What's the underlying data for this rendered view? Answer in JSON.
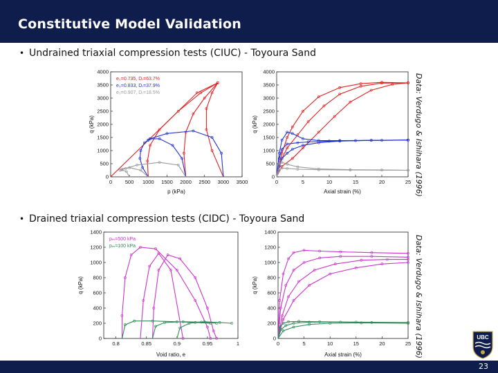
{
  "slide": {
    "title": "Constitutive Model Validation",
    "bullet1": "Undrained triaxial compression tests (CIUC) - Toyoura Sand",
    "bullet2": "Drained triaxial compression tests (CIDC) - Toyoura Sand",
    "credit1": "Data: Verdugo & Ishihara (1996)",
    "credit2": "Data: Verdugo & Ishihara (1996)",
    "page_number": "23",
    "logo_text": "UBC"
  },
  "chart_data": [
    {
      "id": "ciuc-stress-path",
      "type": "line",
      "xlabel": "p (kPa)",
      "ylabel": "q (kPa)",
      "xlim": [
        0,
        3500
      ],
      "ylim": [
        0,
        4000
      ],
      "xticks": [
        "0",
        "500",
        "1000",
        "1500",
        "2000",
        "2500",
        "3000",
        "3500"
      ],
      "yticks": [
        "0",
        "500",
        "1000",
        "1500",
        "2000",
        "2500",
        "3000",
        "3500",
        "4000"
      ],
      "legend": [
        "e₀=0.735, Dᵣ=63.7%",
        "e₀=0.833, Dᵣ=37.9%",
        "e₀=0.907, Dᵣ=18.5%"
      ],
      "legend_colors": [
        "#e02020",
        "#2030d0",
        "#999999"
      ],
      "series": [
        {
          "name": "e0=0.735 model",
          "color": "#e02020",
          "x": [
            0,
            2300,
            2850
          ],
          "y": [
            0,
            3200,
            3580
          ]
        },
        {
          "name": "e0=0.735 p0=1000",
          "color": "#e02020",
          "x": [
            1000,
            980,
            1050,
            1300,
            1800,
            2400,
            2850
          ],
          "y": [
            0,
            600,
            1200,
            1800,
            2500,
            3200,
            3580
          ]
        },
        {
          "name": "e0=0.735 p0=2000",
          "color": "#e02020",
          "x": [
            2000,
            1950,
            2000,
            2200,
            2500,
            2850
          ],
          "y": [
            0,
            900,
            1700,
            2400,
            3000,
            3580
          ]
        },
        {
          "name": "e0=0.735 p0=3000",
          "color": "#e02020",
          "x": [
            3000,
            2700,
            2550,
            2550,
            2700,
            2850
          ],
          "y": [
            0,
            1000,
            1800,
            2600,
            3200,
            3580
          ]
        },
        {
          "name": "e0=0.833 p0=1000",
          "color": "#2030d0",
          "x": [
            1000,
            850,
            780,
            800,
            900,
            1000
          ],
          "y": [
            0,
            350,
            700,
            1000,
            1300,
            1400
          ]
        },
        {
          "name": "e0=0.833 p0=2000",
          "color": "#2030d0",
          "x": [
            2000,
            1900,
            1650,
            1300,
            1050,
            1000
          ],
          "y": [
            0,
            700,
            1200,
            1450,
            1450,
            1400
          ]
        },
        {
          "name": "e0=0.833 p0=3000",
          "color": "#2030d0",
          "x": [
            3000,
            2950,
            2700,
            2200,
            1500,
            1050,
            1000
          ],
          "y": [
            0,
            900,
            1500,
            1750,
            1650,
            1450,
            1400
          ]
        },
        {
          "name": "e0=0.907 p0=1000",
          "color": "#999999",
          "x": [
            1000,
            800,
            500,
            300,
            250
          ],
          "y": [
            0,
            250,
            350,
            300,
            250
          ]
        },
        {
          "name": "e0=0.907 p0=2000",
          "color": "#999999",
          "x": [
            2000,
            1800,
            1300,
            700,
            400,
            250
          ],
          "y": [
            0,
            450,
            550,
            450,
            320,
            250
          ]
        },
        {
          "name": "e0=0.907 p0=500",
          "color": "#999999",
          "x": [
            500,
            420,
            300,
            250
          ],
          "y": [
            0,
            200,
            260,
            250
          ]
        }
      ]
    },
    {
      "id": "ciuc-q-strain",
      "type": "line",
      "xlabel": "Axial strain (%)",
      "ylabel": "q (kPa)",
      "xlim": [
        0,
        25
      ],
      "ylim": [
        0,
        4000
      ],
      "xticks": [
        "0",
        "5",
        "10",
        "15",
        "20",
        "25"
      ],
      "yticks": [
        "0",
        "500",
        "1000",
        "1500",
        "2000",
        "2500",
        "3000",
        "3500",
        "4000"
      ],
      "series": [
        {
          "name": "red 3000",
          "color": "#e02020",
          "x": [
            0,
            1,
            2,
            3,
            5,
            8,
            12,
            16,
            20,
            25
          ],
          "y": [
            0,
            900,
            1500,
            1900,
            2500,
            3050,
            3400,
            3550,
            3600,
            3580
          ]
        },
        {
          "name": "red 2000",
          "color": "#e02020",
          "x": [
            0,
            1,
            2,
            4,
            6,
            9,
            12,
            16,
            20,
            25
          ],
          "y": [
            0,
            700,
            1100,
            1600,
            2100,
            2700,
            3150,
            3450,
            3570,
            3580
          ]
        },
        {
          "name": "red 1000",
          "color": "#e02020",
          "x": [
            0,
            1,
            3,
            5,
            8,
            11,
            14,
            18,
            22,
            25
          ],
          "y": [
            0,
            400,
            700,
            1100,
            1700,
            2300,
            2850,
            3300,
            3520,
            3580
          ]
        },
        {
          "name": "blue 3000",
          "color": "#2030d0",
          "x": [
            0,
            0.5,
            1,
            2,
            3,
            5,
            8,
            12,
            18,
            25
          ],
          "y": [
            0,
            900,
            1400,
            1700,
            1650,
            1450,
            1380,
            1380,
            1390,
            1400
          ]
        },
        {
          "name": "blue 2000",
          "color": "#2030d0",
          "x": [
            0,
            0.5,
            1,
            2,
            4,
            6,
            10,
            15,
            20,
            25
          ],
          "y": [
            0,
            700,
            1050,
            1250,
            1300,
            1330,
            1360,
            1380,
            1390,
            1400
          ]
        },
        {
          "name": "blue 1000",
          "color": "#2030d0",
          "x": [
            0,
            0.5,
            1,
            2,
            3,
            5,
            8,
            12,
            18,
            25
          ],
          "y": [
            0,
            400,
            700,
            900,
            1050,
            1200,
            1300,
            1360,
            1390,
            1400
          ]
        },
        {
          "name": "gray 2000",
          "color": "#999999",
          "x": [
            0,
            0.5,
            1,
            2,
            4,
            8,
            14,
            20,
            25
          ],
          "y": [
            0,
            500,
            550,
            480,
            380,
            300,
            270,
            260,
            250
          ]
        },
        {
          "name": "gray 1000",
          "color": "#999999",
          "x": [
            0,
            0.5,
            1,
            2,
            4,
            8,
            14,
            20,
            25
          ],
          "y": [
            0,
            250,
            330,
            320,
            290,
            270,
            260,
            255,
            250
          ]
        }
      ]
    },
    {
      "id": "cidc-q-void",
      "type": "line",
      "xlabel": "Void ratio, e",
      "ylabel": "q (kPa)",
      "xlim": [
        0.78,
        1.0
      ],
      "ylim": [
        0,
        1400
      ],
      "xticks": [
        "0.8",
        "0.85",
        "0.9",
        "0.95",
        "1"
      ],
      "yticks": [
        "0",
        "200",
        "400",
        "600",
        "800",
        "1000",
        "1200",
        "1400"
      ],
      "legend": [
        "pₘ=500 kPa",
        "pₘ=100 kPa"
      ],
      "legend_colors": [
        "#cc33cc",
        "#2e8b57"
      ],
      "series": [
        {
          "name": "500 a",
          "color": "#cc33cc",
          "x": [
            0.81,
            0.81,
            0.815,
            0.825,
            0.84,
            0.865,
            0.9,
            0.93,
            0.95,
            0.955
          ],
          "y": [
            0,
            300,
            800,
            1100,
            1200,
            1180,
            900,
            500,
            150,
            0
          ]
        },
        {
          "name": "500 b",
          "color": "#cc33cc",
          "x": [
            0.86,
            0.862,
            0.87,
            0.885,
            0.905,
            0.93,
            0.95,
            0.96,
            0.965
          ],
          "y": [
            0,
            400,
            900,
            1100,
            1050,
            800,
            400,
            100,
            0
          ]
        },
        {
          "name": "500 c",
          "color": "#cc33cc",
          "x": [
            0.84,
            0.845,
            0.855,
            0.87,
            0.89,
            0.91
          ],
          "y": [
            0,
            500,
            950,
            1120,
            900,
            0
          ]
        },
        {
          "name": "100 a",
          "color": "#2e8b57",
          "x": [
            0.81,
            0.815,
            0.83,
            0.86,
            0.9,
            0.93,
            0.955
          ],
          "y": [
            0,
            180,
            230,
            230,
            220,
            210,
            200
          ]
        },
        {
          "name": "100 b",
          "color": "#2e8b57",
          "x": [
            0.86,
            0.865,
            0.88,
            0.91,
            0.94,
            0.965
          ],
          "y": [
            0,
            160,
            210,
            220,
            215,
            200
          ]
        },
        {
          "name": "100 c",
          "color": "#2e8b57",
          "x": [
            0.9,
            0.905,
            0.92,
            0.945,
            0.97,
            0.99
          ],
          "y": [
            0,
            140,
            200,
            220,
            210,
            200
          ]
        }
      ]
    },
    {
      "id": "cidc-q-strain",
      "type": "line",
      "xlabel": "Axial strain (%)",
      "ylabel": "q (kPa)",
      "xlim": [
        0,
        25
      ],
      "ylim": [
        0,
        1400
      ],
      "xticks": [
        "0",
        "5",
        "10",
        "15",
        "20",
        "25"
      ],
      "yticks": [
        "0",
        "200",
        "400",
        "600",
        "800",
        "1000",
        "1200",
        "1400"
      ],
      "series": [
        {
          "name": "m1",
          "color": "#cc33cc",
          "x": [
            0,
            0.3,
            1,
            2,
            3,
            5,
            8,
            12,
            18,
            25
          ],
          "y": [
            0,
            500,
            850,
            1050,
            1130,
            1160,
            1150,
            1140,
            1130,
            1120
          ]
        },
        {
          "name": "m2",
          "color": "#cc33cc",
          "x": [
            0,
            0.5,
            1.5,
            3,
            5,
            8,
            12,
            18,
            25
          ],
          "y": [
            0,
            400,
            700,
            900,
            1000,
            1060,
            1080,
            1080,
            1070
          ]
        },
        {
          "name": "m3",
          "color": "#cc33cc",
          "x": [
            0,
            0.8,
            2,
            4,
            7,
            11,
            16,
            21,
            25
          ],
          "y": [
            0,
            300,
            550,
            750,
            900,
            980,
            1030,
            1040,
            1040
          ]
        },
        {
          "name": "m4",
          "color": "#cc33cc",
          "x": [
            0,
            1,
            3,
            6,
            10,
            15,
            20,
            25
          ],
          "y": [
            0,
            250,
            500,
            700,
            850,
            930,
            980,
            1000
          ]
        },
        {
          "name": "g1",
          "color": "#2e8b57",
          "x": [
            0,
            0.3,
            1,
            2,
            4,
            8,
            15,
            25
          ],
          "y": [
            0,
            150,
            200,
            220,
            225,
            220,
            215,
            210
          ]
        },
        {
          "name": "g2",
          "color": "#2e8b57",
          "x": [
            0,
            0.6,
            1.5,
            3,
            6,
            12,
            18,
            25
          ],
          "y": [
            0,
            120,
            170,
            200,
            215,
            215,
            210,
            205
          ]
        },
        {
          "name": "g3",
          "color": "#2e8b57",
          "x": [
            0,
            1,
            3,
            6,
            10,
            16,
            25
          ],
          "y": [
            0,
            100,
            150,
            185,
            200,
            205,
            200
          ]
        }
      ]
    }
  ]
}
